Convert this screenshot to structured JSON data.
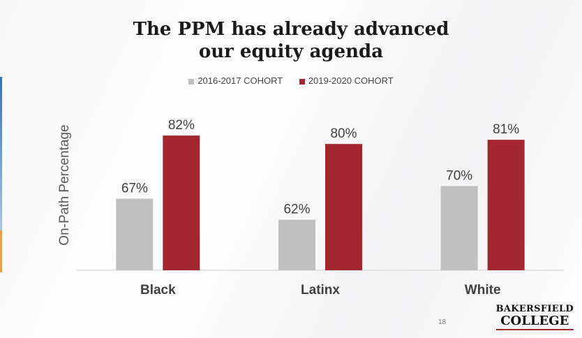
{
  "slide": {
    "title_line1": "The PPM has already advanced",
    "title_line2": "our equity agenda",
    "page_number": "18",
    "logo_line1": "BAKERSFIELD",
    "logo_line2": "COLLEGE"
  },
  "chart_data": {
    "type": "bar",
    "ylabel": "On-Path Percentage",
    "categories": [
      "Black",
      "Latinx",
      "White"
    ],
    "series": [
      {
        "name": "2016-2017 COHORT",
        "values": [
          67,
          62,
          70
        ],
        "color": "#bfbfbf"
      },
      {
        "name": "2019-2020 COHORT",
        "values": [
          82,
          80,
          81
        ],
        "color": "#a4262f"
      }
    ],
    "value_suffix": "%",
    "ylim": [
      50,
      86
    ],
    "grid": false,
    "legend_position": "top"
  }
}
